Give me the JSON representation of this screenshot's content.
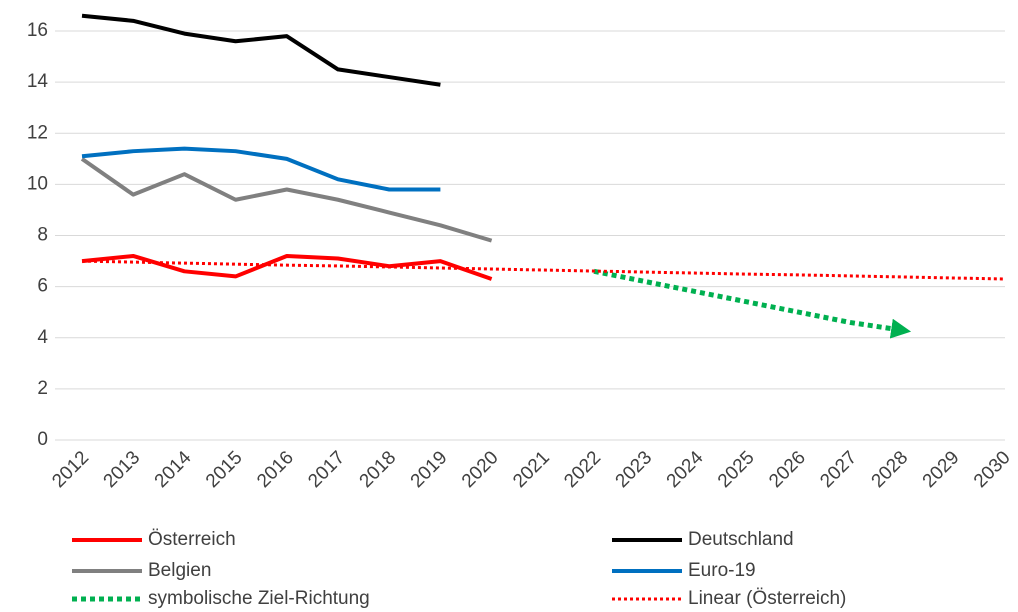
{
  "chart_data": {
    "type": "line",
    "categories": [
      "2012",
      "2013",
      "2014",
      "2015",
      "2016",
      "2017",
      "2018",
      "2019",
      "2020",
      "2021",
      "2022",
      "2023",
      "2024",
      "2025",
      "2026",
      "2027",
      "2028",
      "2029",
      "2030"
    ],
    "series": [
      {
        "name": "Österreich",
        "color": "#ff0000",
        "style": "solid",
        "values": [
          7.0,
          7.2,
          6.6,
          6.4,
          7.2,
          7.1,
          6.8,
          7.0,
          6.3,
          null,
          null,
          null,
          null,
          null,
          null,
          null,
          null,
          null,
          null
        ]
      },
      {
        "name": "Deutschland",
        "color": "#000000",
        "style": "solid",
        "values": [
          16.6,
          16.4,
          15.9,
          15.6,
          15.8,
          14.5,
          14.2,
          13.9,
          null,
          null,
          null,
          null,
          null,
          null,
          null,
          null,
          null,
          null,
          null
        ]
      },
      {
        "name": "Belgien",
        "color": "#808080",
        "style": "solid",
        "values": [
          11.0,
          9.6,
          10.4,
          9.4,
          9.8,
          9.4,
          8.9,
          8.4,
          7.8,
          null,
          null,
          null,
          null,
          null,
          null,
          null,
          null,
          null,
          null
        ]
      },
      {
        "name": "Euro-19",
        "color": "#0070c0",
        "style": "solid",
        "values": [
          11.1,
          11.3,
          11.4,
          11.3,
          11.0,
          10.2,
          9.8,
          9.8,
          null,
          null,
          null,
          null,
          null,
          null,
          null,
          null,
          null,
          null,
          null
        ]
      },
      {
        "name": "symbolische Ziel-Richtung",
        "color": "#00b050",
        "style": "dotted-arrow",
        "values": [
          null,
          null,
          null,
          null,
          null,
          null,
          null,
          null,
          null,
          null,
          6.6,
          6.2,
          5.8,
          5.4,
          5.0,
          4.6,
          4.3,
          null,
          null
        ]
      },
      {
        "name": "Linear (Österreich)",
        "color": "#ff0000",
        "style": "dotted",
        "values": [
          7.0,
          6.96,
          6.92,
          6.88,
          6.84,
          6.81,
          6.77,
          6.73,
          6.69,
          6.65,
          6.61,
          6.57,
          6.53,
          6.49,
          6.46,
          6.42,
          6.38,
          6.34,
          6.3
        ]
      }
    ],
    "ylim": [
      0,
      17
    ],
    "yticks": [
      0,
      2,
      4,
      6,
      8,
      10,
      12,
      14,
      16
    ],
    "grid": true,
    "legend": "bottom"
  }
}
